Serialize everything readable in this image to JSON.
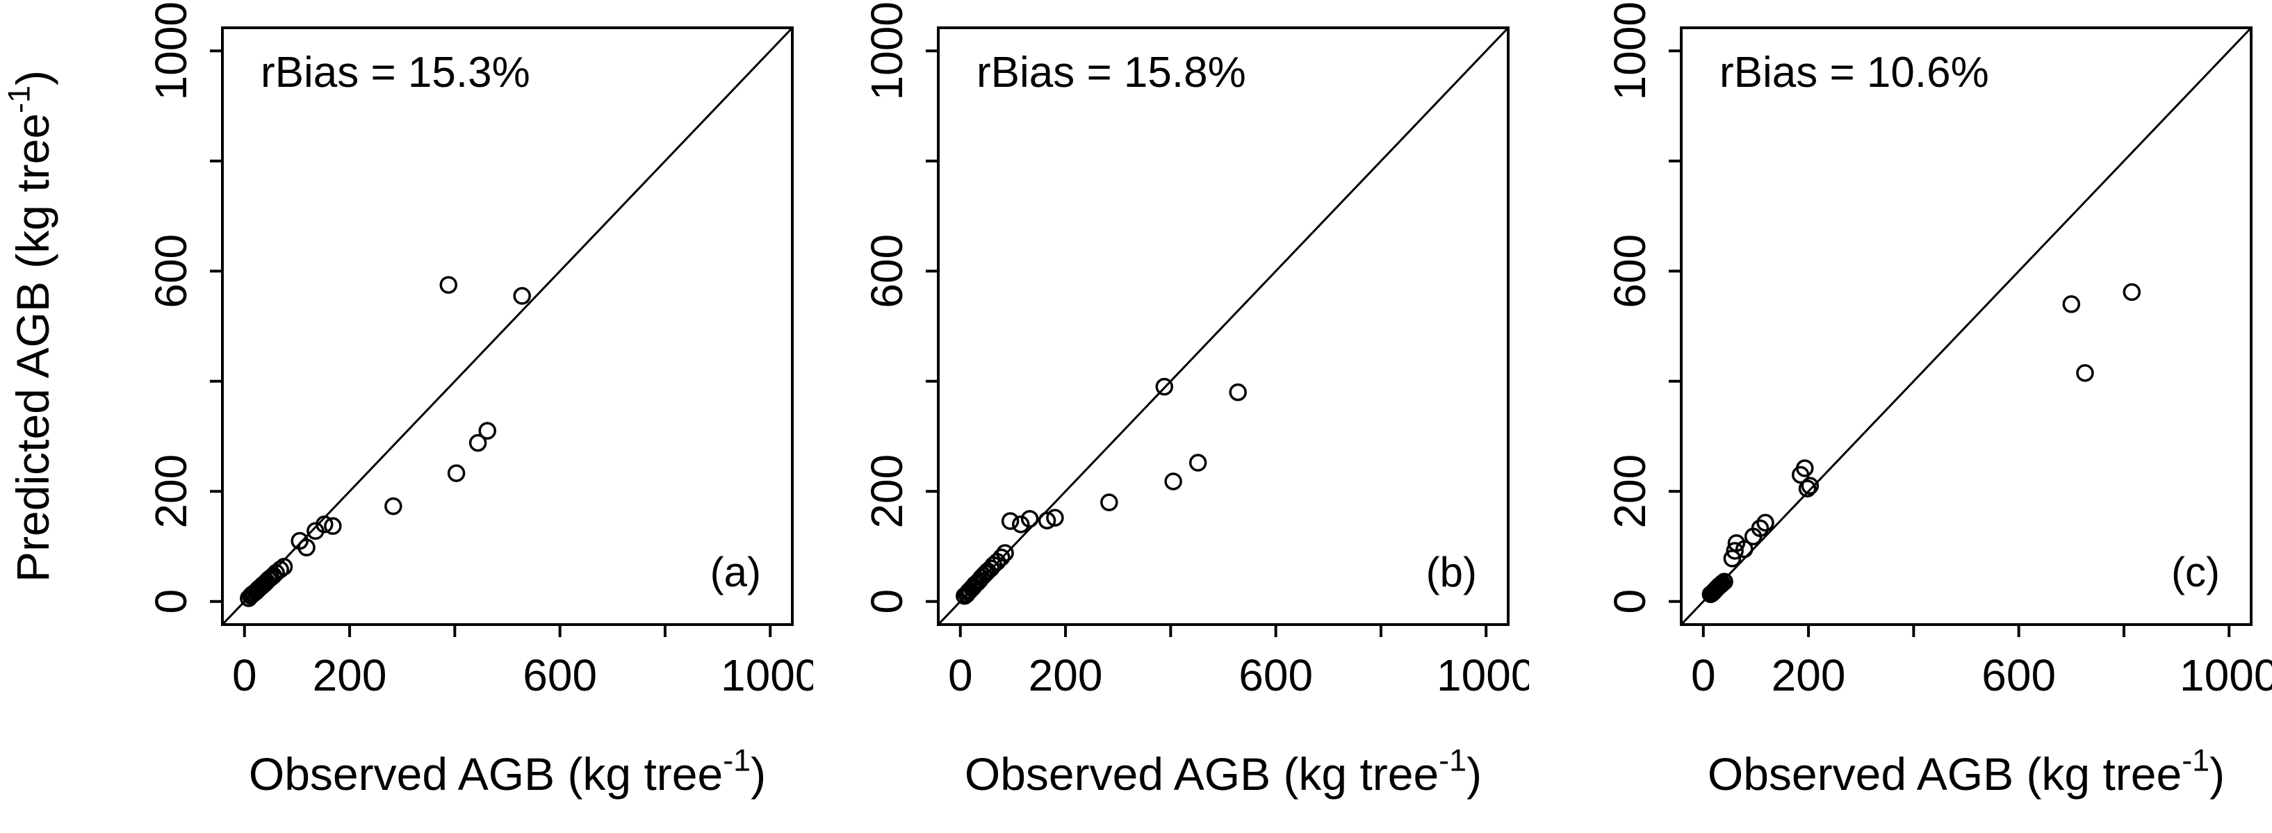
{
  "figure": {
    "background": "#ffffff",
    "foreground": "#000000",
    "description": "Three-panel scatter plot of Predicted vs Observed AGB with 1:1 identity lines"
  },
  "chart_data": [
    {
      "type": "scatter",
      "panel_label": "(a)",
      "annotation": "rBias = 15.3%",
      "xlabel": "Observed AGB (kg tree⁻¹)",
      "ylabel": "Predicted AGB (kg tree⁻¹)",
      "xlim": [
        -42,
        1042
      ],
      "ylim": [
        -42,
        1042
      ],
      "ticks": [
        0,
        200,
        400,
        600,
        800,
        1000
      ],
      "labeled_ticks": [
        0,
        200,
        600,
        1000
      ],
      "identity_line": true,
      "marker": "open-circle",
      "color": "#000000",
      "points": [
        [
          8,
          6
        ],
        [
          12,
          10
        ],
        [
          15,
          13
        ],
        [
          18,
          15
        ],
        [
          22,
          18
        ],
        [
          25,
          21
        ],
        [
          28,
          24
        ],
        [
          32,
          27
        ],
        [
          35,
          30
        ],
        [
          38,
          32
        ],
        [
          42,
          36
        ],
        [
          46,
          40
        ],
        [
          50,
          43
        ],
        [
          55,
          47
        ],
        [
          60,
          52
        ],
        [
          68,
          58
        ],
        [
          75,
          63
        ],
        [
          105,
          110
        ],
        [
          118,
          98
        ],
        [
          135,
          128
        ],
        [
          152,
          140
        ],
        [
          168,
          137
        ],
        [
          283,
          173
        ],
        [
          388,
          575
        ],
        [
          403,
          233
        ],
        [
          444,
          288
        ],
        [
          462,
          310
        ],
        [
          528,
          555
        ]
      ]
    },
    {
      "type": "scatter",
      "panel_label": "(b)",
      "annotation": "rBias = 15.8%",
      "xlabel": "Observed AGB (kg tree⁻¹)",
      "ylabel": "",
      "xlim": [
        -42,
        1042
      ],
      "ylim": [
        -42,
        1042
      ],
      "ticks": [
        0,
        200,
        400,
        600,
        800,
        1000
      ],
      "labeled_ticks": [
        0,
        200,
        600,
        1000
      ],
      "identity_line": true,
      "marker": "open-circle",
      "color": "#000000",
      "points": [
        [
          8,
          10
        ],
        [
          12,
          13
        ],
        [
          15,
          17
        ],
        [
          18,
          20
        ],
        [
          22,
          24
        ],
        [
          25,
          27
        ],
        [
          28,
          31
        ],
        [
          32,
          34
        ],
        [
          36,
          38
        ],
        [
          40,
          43
        ],
        [
          44,
          47
        ],
        [
          48,
          51
        ],
        [
          52,
          55
        ],
        [
          58,
          60
        ],
        [
          63,
          66
        ],
        [
          70,
          72
        ],
        [
          78,
          80
        ],
        [
          85,
          88
        ],
        [
          95,
          146
        ],
        [
          115,
          140
        ],
        [
          132,
          150
        ],
        [
          165,
          147
        ],
        [
          180,
          152
        ],
        [
          283,
          180
        ],
        [
          388,
          390
        ],
        [
          405,
          218
        ],
        [
          452,
          252
        ],
        [
          528,
          380
        ]
      ]
    },
    {
      "type": "scatter",
      "panel_label": "(c)",
      "annotation": "rBias = 10.6%",
      "xlabel": "Observed AGB (kg tree⁻¹)",
      "ylabel": "",
      "xlim": [
        -42,
        1042
      ],
      "ylim": [
        -42,
        1042
      ],
      "ticks": [
        0,
        200,
        400,
        600,
        800,
        1000
      ],
      "labeled_ticks": [
        0,
        200,
        600,
        1000
      ],
      "identity_line": true,
      "marker": "open-circle",
      "color": "#000000",
      "points": [
        [
          14,
          13
        ],
        [
          17,
          15
        ],
        [
          20,
          18
        ],
        [
          22,
          20
        ],
        [
          25,
          23
        ],
        [
          27,
          25
        ],
        [
          30,
          28
        ],
        [
          33,
          30
        ],
        [
          36,
          33
        ],
        [
          40,
          36
        ],
        [
          55,
          78
        ],
        [
          60,
          92
        ],
        [
          63,
          106
        ],
        [
          78,
          95
        ],
        [
          95,
          118
        ],
        [
          108,
          133
        ],
        [
          118,
          143
        ],
        [
          185,
          230
        ],
        [
          193,
          242
        ],
        [
          198,
          205
        ],
        [
          203,
          210
        ],
        [
          700,
          540
        ],
        [
          726,
          415
        ],
        [
          815,
          562
        ]
      ]
    }
  ]
}
